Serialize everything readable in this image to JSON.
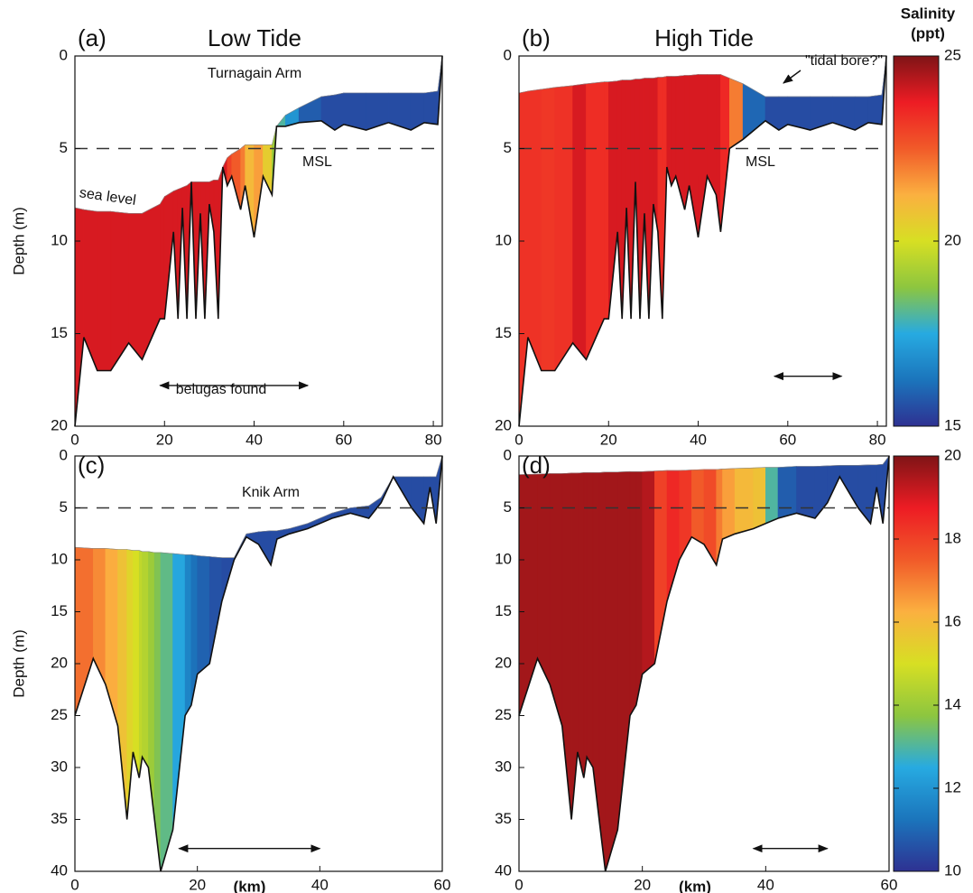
{
  "chart_data": [
    {
      "type": "area",
      "label": "(a)",
      "title": "Low Tide",
      "ylabel": "Depth (m)",
      "xlim": [
        0,
        82
      ],
      "xticks": [
        0,
        20,
        40,
        60,
        80
      ],
      "ylim": [
        0,
        20
      ],
      "yticks": [
        0,
        5,
        10,
        15,
        20
      ],
      "invert_y": true,
      "clim": [
        15,
        25
      ],
      "msl": 5,
      "annotations": [
        "Turnagain  Arm",
        "MSL",
        "sea level",
        "belugas found"
      ],
      "arrows": [
        {
          "x": [
            19,
            52
          ],
          "y": 17.8
        }
      ],
      "x": [
        0,
        2,
        5,
        8,
        12,
        15,
        19,
        20,
        22,
        23,
        24,
        25,
        26,
        27,
        28,
        29,
        30,
        31,
        32,
        33,
        34,
        35,
        37,
        38,
        40,
        42,
        44,
        45,
        47,
        50,
        55,
        58,
        60,
        65,
        70,
        75,
        78,
        81,
        82
      ],
      "surface": [
        8.2,
        8.3,
        8.4,
        8.4,
        8.5,
        8.5,
        8,
        7.6,
        7.3,
        7.2,
        7.1,
        7,
        6.8,
        6.8,
        6.8,
        6.8,
        6.8,
        6.7,
        6.7,
        6,
        5.5,
        5.3,
        5,
        4.8,
        4.8,
        4.8,
        4.8,
        3.8,
        3.2,
        2.8,
        2.2,
        2.1,
        2,
        2,
        2,
        2,
        2,
        1.9,
        0
      ],
      "bottom": [
        20,
        15.2,
        17,
        17,
        15.5,
        16.4,
        14.2,
        14.2,
        9.5,
        14.2,
        8.2,
        14.2,
        6.8,
        14.2,
        8.5,
        14.2,
        8,
        9.5,
        14.2,
        6,
        7,
        6.5,
        8.3,
        7,
        9.8,
        6.5,
        7.5,
        3.8,
        3.8,
        3.6,
        3.5,
        4,
        3.7,
        4,
        3.6,
        4,
        3.6,
        3.7,
        0
      ],
      "salinity": [
        24,
        24,
        24,
        24,
        24,
        24,
        24,
        24,
        24,
        24,
        24,
        24,
        24,
        24,
        24,
        24,
        24,
        24,
        24,
        24,
        23,
        22.5,
        22,
        21,
        21.5,
        20.5,
        19,
        18,
        17,
        15.8,
        15.5,
        15.5,
        15.5,
        15.5,
        15.5,
        15.5,
        15.5,
        15.5,
        15.5
      ]
    },
    {
      "type": "area",
      "label": "(b)",
      "title": "High Tide",
      "xlim": [
        0,
        82
      ],
      "xticks": [
        0,
        20,
        40,
        60,
        80
      ],
      "ylim": [
        0,
        20
      ],
      "yticks": [
        0,
        5,
        10,
        15,
        20
      ],
      "invert_y": true,
      "clim": [
        15,
        25
      ],
      "msl": 5,
      "annotations": [
        "MSL",
        "\"tidal bore?\""
      ],
      "arrows": [
        {
          "x": [
            57,
            72
          ],
          "y": 17.3
        }
      ],
      "colorbar": {
        "label": [
          "Salinity",
          "(ppt)"
        ],
        "ticks": [
          15,
          20,
          25
        ]
      },
      "x": [
        0,
        2,
        5,
        8,
        12,
        15,
        19,
        20,
        22,
        23,
        24,
        25,
        26,
        27,
        28,
        29,
        30,
        31,
        32,
        33,
        34,
        35,
        37,
        38,
        40,
        42,
        44,
        45,
        47,
        50,
        55,
        58,
        60,
        65,
        70,
        75,
        78,
        81,
        82
      ],
      "surface": [
        2,
        1.9,
        1.8,
        1.7,
        1.6,
        1.5,
        1.4,
        1.4,
        1.35,
        1.3,
        1.3,
        1.3,
        1.25,
        1.25,
        1.2,
        1.2,
        1.2,
        1.15,
        1.15,
        1.1,
        1.1,
        1.1,
        1.05,
        1.05,
        1,
        1,
        1,
        1,
        1.2,
        1.5,
        2.2,
        2.2,
        2.2,
        2.2,
        2.2,
        2.2,
        2.2,
        2.1,
        0
      ],
      "bottom": [
        20,
        15.2,
        17,
        17,
        15.5,
        16.4,
        14.2,
        14.2,
        9.5,
        14.2,
        8.2,
        14.2,
        6.8,
        14.2,
        8.5,
        14.2,
        8,
        9.5,
        14.2,
        6,
        7,
        6.5,
        8.3,
        7,
        9.8,
        6.5,
        7.5,
        9.5,
        5,
        4.5,
        3.5,
        4,
        3.7,
        4,
        3.6,
        4,
        3.6,
        3.7,
        0
      ],
      "salinity": [
        23.3,
        23.3,
        23.2,
        23.3,
        24,
        23.4,
        23.4,
        24,
        24,
        24,
        24,
        24,
        24,
        24,
        24,
        24,
        24,
        23.4,
        23.4,
        24,
        24,
        24,
        24,
        24,
        24,
        24,
        24,
        23.5,
        22,
        16,
        15.5,
        15.5,
        15.5,
        15.5,
        15.5,
        15.5,
        15.5,
        15.5,
        15.5
      ]
    },
    {
      "type": "area",
      "label": "(c)",
      "ylabel": "Depth (m)",
      "xlabel": "(km)",
      "xlim": [
        0,
        60
      ],
      "xticks": [
        0,
        20,
        40,
        60
      ],
      "ylim": [
        0,
        40
      ],
      "yticks": [
        0,
        5,
        10,
        15,
        20,
        25,
        30,
        35,
        40
      ],
      "invert_y": true,
      "clim": [
        10,
        20
      ],
      "msl": 5,
      "annotations": [
        "Knik  Arm"
      ],
      "arrows": [
        {
          "x": [
            17,
            40
          ],
          "y": 37.8
        }
      ],
      "x": [
        0,
        3,
        5,
        7,
        8.5,
        9.5,
        10.5,
        11,
        12,
        13,
        14,
        16,
        18,
        19,
        20,
        22,
        24,
        26,
        28,
        30,
        32,
        33,
        35,
        38,
        40,
        42,
        45,
        48,
        50,
        52,
        55,
        57,
        58,
        59,
        60
      ],
      "surface": [
        8.8,
        8.9,
        8.9,
        9,
        9,
        9.1,
        9.1,
        9.2,
        9.2,
        9.3,
        9.3,
        9.4,
        9.5,
        9.5,
        9.6,
        9.7,
        9.8,
        9.8,
        7.5,
        7.3,
        7.2,
        7.2,
        7,
        6.5,
        6,
        5.5,
        5,
        4.8,
        4,
        2,
        2,
        2,
        2,
        2,
        0
      ],
      "bottom": [
        25,
        19.5,
        22,
        26,
        35,
        28.5,
        31,
        29,
        30,
        35,
        40,
        36,
        25,
        24,
        21,
        20,
        14,
        10,
        7.8,
        8.5,
        10.5,
        8,
        7.5,
        7,
        6.5,
        6,
        5.5,
        6,
        4.5,
        2,
        5,
        6.5,
        3,
        6.5,
        0
      ],
      "salinity": [
        17.2,
        16.8,
        16.3,
        15.8,
        15.3,
        15,
        14.6,
        14.4,
        14,
        13.6,
        13.2,
        12.4,
        11.6,
        11.2,
        10.9,
        10.6,
        10.5,
        10.5,
        10.5,
        10.5,
        10.5,
        10.5,
        10.5,
        10.5,
        10.5,
        10.5,
        10.5,
        10.5,
        10.5,
        10.5,
        10.5,
        10.5,
        10.5,
        10.5,
        10.5
      ]
    },
    {
      "type": "area",
      "label": "(d)",
      "xlabel": "(km)",
      "xlim": [
        0,
        60
      ],
      "xticks": [
        0,
        20,
        40,
        60
      ],
      "ylim": [
        0,
        40
      ],
      "yticks": [
        0,
        5,
        10,
        15,
        20,
        25,
        30,
        35,
        40
      ],
      "invert_y": true,
      "clim": [
        10,
        20
      ],
      "msl": 5,
      "annotations": [],
      "arrows": [
        {
          "x": [
            38,
            50
          ],
          "y": 37.8
        }
      ],
      "colorbar": {
        "ticks": [
          10,
          12,
          14,
          16,
          18,
          20
        ]
      },
      "x": [
        0,
        3,
        5,
        7,
        8.5,
        9.5,
        10.5,
        11,
        12,
        13,
        14,
        16,
        18,
        19,
        20,
        22,
        24,
        26,
        28,
        30,
        32,
        33,
        35,
        38,
        40,
        42,
        45,
        48,
        50,
        52,
        55,
        57,
        58,
        59,
        60
      ],
      "surface": [
        1.8,
        1.75,
        1.7,
        1.7,
        1.65,
        1.65,
        1.6,
        1.6,
        1.6,
        1.6,
        1.55,
        1.55,
        1.5,
        1.5,
        1.5,
        1.45,
        1.4,
        1.4,
        1.35,
        1.3,
        1.3,
        1.25,
        1.2,
        1.15,
        1.1,
        1.1,
        1,
        1,
        0.95,
        0.9,
        0.9,
        0.85,
        0.85,
        0.8,
        0
      ],
      "bottom": [
        25,
        19.5,
        22,
        26,
        35,
        28.5,
        31,
        29,
        30,
        35,
        40,
        36,
        25,
        24,
        21,
        20,
        14,
        10,
        7.8,
        8.5,
        10.5,
        8,
        7.5,
        7,
        6.5,
        6,
        5.5,
        6,
        4.5,
        2,
        5,
        6.5,
        3,
        6.5,
        0
      ],
      "salinity": [
        19.6,
        19.6,
        19.6,
        19.6,
        19.6,
        19.6,
        19.6,
        19.6,
        19.6,
        19.6,
        19.6,
        19.6,
        19.6,
        19.6,
        19.4,
        18,
        18.5,
        18.2,
        17.5,
        17.8,
        17,
        16.5,
        16,
        15.8,
        13,
        10.8,
        10.5,
        10.5,
        10.5,
        10.5,
        10.5,
        10.5,
        10.5,
        10.5,
        10.5
      ]
    }
  ],
  "colormap": [
    "#2e3192",
    "#1b75bc",
    "#27aae1",
    "#8dc63f",
    "#d7df23",
    "#fbb040",
    "#f15a29",
    "#ed1c24",
    "#7f1416"
  ]
}
